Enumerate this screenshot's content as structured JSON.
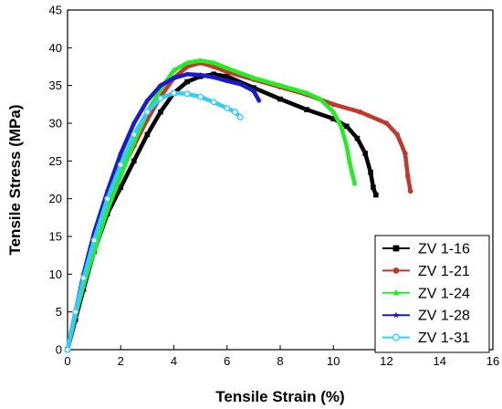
{
  "chart_data": {
    "type": "line",
    "xlabel": "Tensile Strain (%)",
    "ylabel": "Tensile Stress (MPa)",
    "xlim": [
      0,
      16
    ],
    "ylim": [
      0,
      45
    ],
    "x_ticks": [
      "0",
      "2",
      "4",
      "6",
      "8",
      "10",
      "12",
      "14",
      "16"
    ],
    "y_ticks": [
      "0",
      "5",
      "10",
      "15",
      "20",
      "25",
      "30",
      "35",
      "40",
      "45"
    ],
    "legend_position": "bottom-right",
    "series": [
      {
        "name": "ZV 1-16",
        "color": "#000000",
        "marker": "square",
        "x": [
          0,
          0.3,
          0.6,
          1.0,
          1.5,
          2.0,
          2.5,
          3.0,
          3.5,
          4.0,
          4.5,
          5.0,
          5.5,
          6.0,
          7.0,
          8.0,
          9.0,
          10.0,
          10.5,
          10.9,
          11.2,
          11.4,
          11.5,
          11.6
        ],
        "y": [
          0,
          4,
          8,
          13,
          18,
          21.5,
          25,
          28.5,
          31.5,
          34,
          35.5,
          36.2,
          36.5,
          36.2,
          34.7,
          33.2,
          31.8,
          30.6,
          29.6,
          28,
          26,
          23.5,
          21.5,
          20.5
        ]
      },
      {
        "name": "ZV 1-21",
        "color": "#c0392b",
        "marker": "circle",
        "x": [
          0,
          0.3,
          0.6,
          1.0,
          1.5,
          2.0,
          2.5,
          3.0,
          3.5,
          4.0,
          4.5,
          5.0,
          5.5,
          6.0,
          7.0,
          8.0,
          9.0,
          10.0,
          11.0,
          12.0,
          12.4,
          12.7,
          12.8,
          12.9
        ],
        "y": [
          0,
          5,
          9,
          14,
          19,
          23.5,
          27,
          30.5,
          33.5,
          36,
          37.5,
          38,
          37.5,
          36.8,
          35.8,
          34.8,
          33.8,
          32.5,
          31.5,
          30,
          28.5,
          26,
          23,
          21
        ]
      },
      {
        "name": "ZV 1-24",
        "color": "#22ee22",
        "marker": "triangle",
        "x": [
          0,
          0.3,
          0.6,
          1.0,
          1.5,
          2.0,
          2.5,
          3.0,
          3.5,
          4.0,
          4.5,
          5.0,
          5.5,
          6.0,
          7.0,
          8.0,
          9.0,
          9.5,
          10.0,
          10.3,
          10.5,
          10.6,
          10.7,
          10.8
        ],
        "y": [
          0,
          4.5,
          8.5,
          13,
          18.5,
          23,
          27.5,
          31.5,
          34.5,
          37,
          38,
          38.3,
          38,
          37.3,
          36,
          35,
          34,
          33.2,
          31.5,
          29.5,
          27,
          25,
          23.5,
          22
        ]
      },
      {
        "name": "ZV 1-28",
        "color": "#1a1acc",
        "marker": "star",
        "x": [
          0,
          0.3,
          0.6,
          1.0,
          1.5,
          2.0,
          2.5,
          3.0,
          3.5,
          4.0,
          4.5,
          5.0,
          5.5,
          6.0,
          6.5,
          7.0,
          7.2
        ],
        "y": [
          0,
          5,
          10,
          15.5,
          21,
          26,
          30,
          33,
          35,
          36,
          36.5,
          36.4,
          36.1,
          35.6,
          35.2,
          34.3,
          33
        ]
      },
      {
        "name": "ZV 1-31",
        "color": "#33ccff",
        "marker": "circle-open",
        "x": [
          0,
          0.3,
          0.6,
          1.0,
          1.5,
          2.0,
          2.5,
          3.0,
          3.5,
          4.0,
          4.5,
          5.0,
          5.5,
          6.0,
          6.3,
          6.5
        ],
        "y": [
          0,
          5,
          9.5,
          14.5,
          20,
          24.5,
          28.5,
          31.5,
          33.3,
          34,
          33.9,
          33.5,
          32.8,
          32,
          31.5,
          30.8
        ]
      }
    ]
  }
}
